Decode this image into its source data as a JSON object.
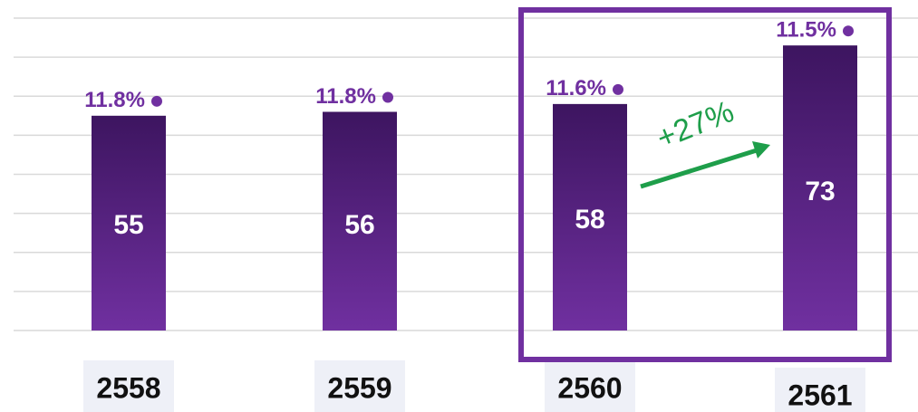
{
  "chart_data": {
    "type": "bar",
    "categories": [
      "2558",
      "2559",
      "2560",
      "2561"
    ],
    "values": [
      55,
      56,
      58,
      73
    ],
    "color": "#5b2590",
    "rates": {
      "values": [
        11.8,
        11.8,
        11.6,
        11.5
      ],
      "value_labels": [
        "11.8%",
        "11.8%",
        "11.6%",
        "11.5%"
      ],
      "color": "#7030a0"
    },
    "annotation": "+27%",
    "ylim": [
      0,
      80
    ],
    "yticks": [
      0,
      10,
      20,
      30,
      40,
      50,
      60,
      70,
      80
    ],
    "grid": true
  }
}
